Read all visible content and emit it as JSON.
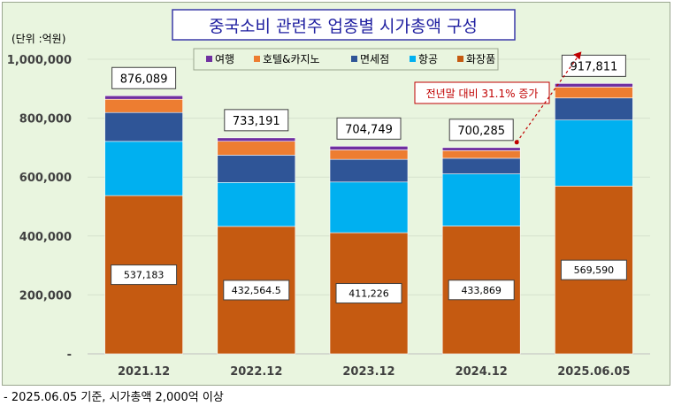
{
  "chart_data": {
    "type": "bar",
    "stacked": true,
    "title": "중국소비 관련주 업종별 시가총액 구성",
    "unit_label": "(단위 :억원)",
    "categories": [
      "2021.12",
      "2022.12",
      "2023.12",
      "2024.12",
      "2025.06.05"
    ],
    "series": [
      {
        "name": "화장품",
        "color": "#c55a11",
        "values": [
          537183,
          432564.5,
          411226,
          433869,
          569590
        ]
      },
      {
        "name": "항공",
        "color": "#00b0f0",
        "values": [
          184000,
          149000,
          172000,
          177000,
          224000
        ]
      },
      {
        "name": "면세점",
        "color": "#2f5597",
        "values": [
          98000,
          93000,
          77000,
          53000,
          75000
        ]
      },
      {
        "name": "호텔&카지노",
        "color": "#ed7d31",
        "values": [
          45000,
          47000,
          32000,
          26000,
          37000
        ]
      },
      {
        "name": "여행",
        "color": "#7030a0",
        "values": [
          11906,
          11626.5,
          12523,
          10416,
          12221
        ]
      }
    ],
    "totals": [
      876089,
      733191,
      704749,
      700285,
      917811
    ],
    "total_labels": [
      "876,089",
      "733,191",
      "704,749",
      "700,285",
      "917,811"
    ],
    "base_labels": [
      "537,183",
      "432,564.5",
      "411,226",
      "433,869",
      "569,590"
    ],
    "y_ticks": [
      0,
      200000,
      400000,
      600000,
      800000,
      1000000
    ],
    "y_tick_labels": [
      "-",
      "200,000",
      "400,000",
      "600,000",
      "800,000",
      "1,000,000"
    ],
    "ylim": [
      0,
      1000000
    ],
    "legend_position": "top",
    "annotation": "전년말 대비 31.1% 증가",
    "annotation_color": "#c00000"
  },
  "footnote": "- 2025.06.05 기준, 시가총액 2,000억 이상"
}
